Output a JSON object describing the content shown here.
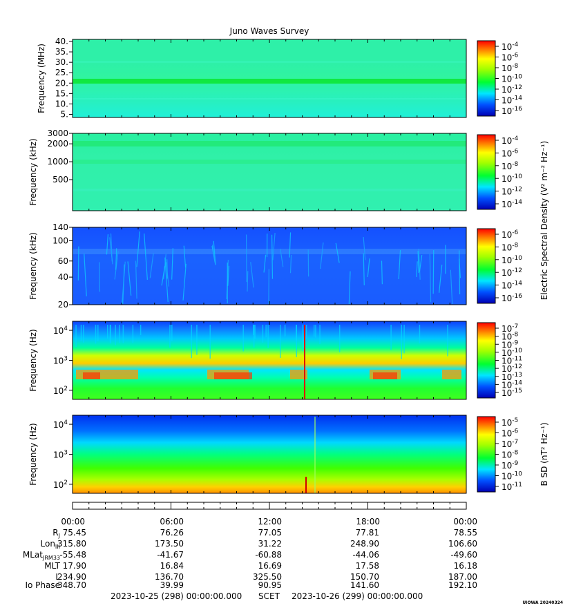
{
  "title": "Juno Waves Survey",
  "stamp": "UIOWA 20240324",
  "colors": {
    "cold": "#0000c8",
    "mid": "#00ff00",
    "hot": "#ff0000"
  },
  "chart_data": [
    {
      "type": "heatmap",
      "ylabel": "Frequency (MHz)",
      "yticks": [
        "40.",
        "35.",
        "30.",
        "25.",
        "20.",
        "15.",
        "10.",
        "5."
      ],
      "ylim": [
        3.5,
        41
      ],
      "cbar_ticks": [
        "-4",
        "-6",
        "-8",
        "-10",
        "-12",
        "-14",
        "-16"
      ],
      "cbar_label": ""
    },
    {
      "type": "heatmap",
      "ylabel": "Frequency (kHz)",
      "yticks": [
        "3000",
        "2000",
        "1000",
        "500"
      ],
      "ylim": [
        150,
        3000
      ],
      "cbar_ticks": [
        "-4",
        "-6",
        "-8",
        "-10",
        "-12",
        "-14"
      ],
      "cbar_label": "Electric Spectral Density (V² m⁻² Hz⁻¹)"
    },
    {
      "type": "heatmap",
      "ylabel": "Frequency (kHz)",
      "yticks": [
        "140",
        "100",
        "60",
        "40",
        "20"
      ],
      "ylim": [
        20,
        140
      ],
      "cbar_ticks": [
        "-6",
        "-8",
        "-10",
        "-12",
        "-14",
        "-16"
      ],
      "cbar_label": ""
    },
    {
      "type": "heatmap",
      "ylabel": "Frequency (Hz)",
      "yticks": [
        "10^4",
        "10^3",
        "10^2"
      ],
      "ylim": [
        50,
        20000
      ],
      "cbar_ticks": [
        "-7",
        "-8",
        "-9",
        "-10",
        "-11",
        "-12",
        "-13",
        "-14",
        "-15"
      ],
      "cbar_label": ""
    },
    {
      "type": "heatmap",
      "ylabel": "Frequency (Hz)",
      "yticks": [
        "10^4",
        "10^3",
        "10^2"
      ],
      "ylim": [
        50,
        20000
      ],
      "cbar_ticks": [
        "-5",
        "-6",
        "-7",
        "-8",
        "-9",
        "-10",
        "-11"
      ],
      "cbar_label": "B SD (nT² Hz⁻¹)"
    }
  ],
  "time_axis": [
    "00:00",
    "06:00",
    "12:00",
    "18:00",
    "00:00"
  ],
  "ephemeris": [
    {
      "label": "R_J",
      "values": [
        "75.45",
        "76.26",
        "77.05",
        "77.81",
        "78.55"
      ]
    },
    {
      "label": "Lon_III",
      "values": [
        "315.80",
        "173.50",
        "31.22",
        "248.90",
        "106.60"
      ]
    },
    {
      "label": "MLat_JRM33",
      "values": [
        "-55.48",
        "-41.67",
        "-60.88",
        "-44.06",
        "-49.60"
      ]
    },
    {
      "label": "MLT",
      "values": [
        "17.90",
        "16.84",
        "16.69",
        "17.58",
        "16.18"
      ]
    },
    {
      "label": "L",
      "values": [
        "234.90",
        "136.70",
        "325.50",
        "150.70",
        "187.00"
      ]
    },
    {
      "label": "Io Phase",
      "values": [
        "348.70",
        "39.99",
        "90.95",
        "141.60",
        "192.10"
      ]
    }
  ],
  "footer": {
    "start": "2023-10-25 (298) 00:00:00.000",
    "scet": "SCET",
    "end": "2023-10-26 (299) 00:00:00.000"
  }
}
